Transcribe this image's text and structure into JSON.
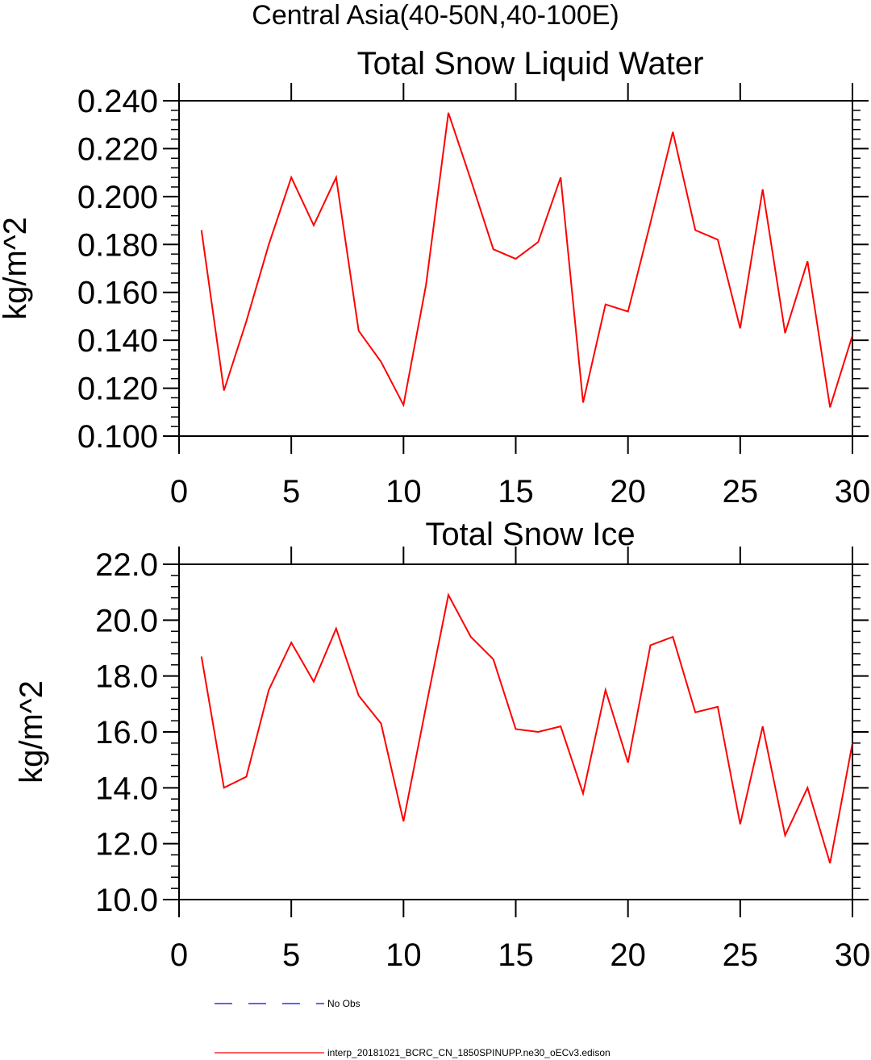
{
  "figure": {
    "title": "Central Asia(40-50N,40-100E)"
  },
  "legend": {
    "items": [
      {
        "label": "No Obs",
        "color": "#0000ff",
        "style": "dashed"
      },
      {
        "label": "interp_20181021_BCRC_CN_1850SPINUPP.ne30_oECv3.edison",
        "color": "#ff0000",
        "style": "solid"
      }
    ]
  },
  "chart_data": [
    {
      "type": "line",
      "title": "Total Snow Liquid Water",
      "xlabel": "",
      "ylabel": "kg/m^2",
      "xlim": [
        0,
        30
      ],
      "ylim": [
        0.1,
        0.24
      ],
      "x_ticks": [
        0,
        5,
        10,
        15,
        20,
        25,
        30
      ],
      "y_ticks": [
        0.1,
        0.12,
        0.14,
        0.16,
        0.18,
        0.2,
        0.22,
        0.24
      ],
      "y_tick_labels": [
        "0.100",
        "0.120",
        "0.140",
        "0.160",
        "0.180",
        "0.200",
        "0.220",
        "0.240"
      ],
      "grid": false,
      "series": [
        {
          "color": "#ff0000",
          "x": [
            1,
            2,
            3,
            4,
            5,
            6,
            7,
            8,
            9,
            10,
            11,
            12,
            13,
            14,
            15,
            16,
            17,
            18,
            19,
            20,
            21,
            22,
            23,
            24,
            25,
            26,
            27,
            28,
            29,
            30
          ],
          "values": [
            0.186,
            0.119,
            0.148,
            0.18,
            0.208,
            0.188,
            0.208,
            0.144,
            0.131,
            0.113,
            0.163,
            0.235,
            0.207,
            0.178,
            0.174,
            0.181,
            0.208,
            0.114,
            0.155,
            0.152,
            0.189,
            0.227,
            0.186,
            0.182,
            0.145,
            0.203,
            0.143,
            0.173,
            0.112,
            0.142
          ]
        }
      ]
    },
    {
      "type": "line",
      "title": "Total Snow Ice",
      "xlabel": "",
      "ylabel": "kg/m^2",
      "xlim": [
        0,
        30
      ],
      "ylim": [
        10,
        22
      ],
      "x_ticks": [
        0,
        5,
        10,
        15,
        20,
        25,
        30
      ],
      "y_ticks": [
        10,
        12,
        14,
        16,
        18,
        20,
        22
      ],
      "y_tick_labels": [
        "10.0",
        "12.0",
        "14.0",
        "16.0",
        "18.0",
        "20.0",
        "22.0"
      ],
      "grid": false,
      "series": [
        {
          "color": "#ff0000",
          "x": [
            1,
            2,
            3,
            4,
            5,
            6,
            7,
            8,
            9,
            10,
            11,
            12,
            13,
            14,
            15,
            16,
            17,
            18,
            19,
            20,
            21,
            22,
            23,
            24,
            25,
            26,
            27,
            28,
            29,
            30
          ],
          "values": [
            18.7,
            14.0,
            14.4,
            17.5,
            19.2,
            17.8,
            19.7,
            17.3,
            16.3,
            12.8,
            16.9,
            20.9,
            19.4,
            18.6,
            16.1,
            16.0,
            16.2,
            13.8,
            17.5,
            14.9,
            19.1,
            19.4,
            16.7,
            16.9,
            12.7,
            16.2,
            12.3,
            14.0,
            11.3,
            15.6
          ]
        }
      ]
    }
  ]
}
